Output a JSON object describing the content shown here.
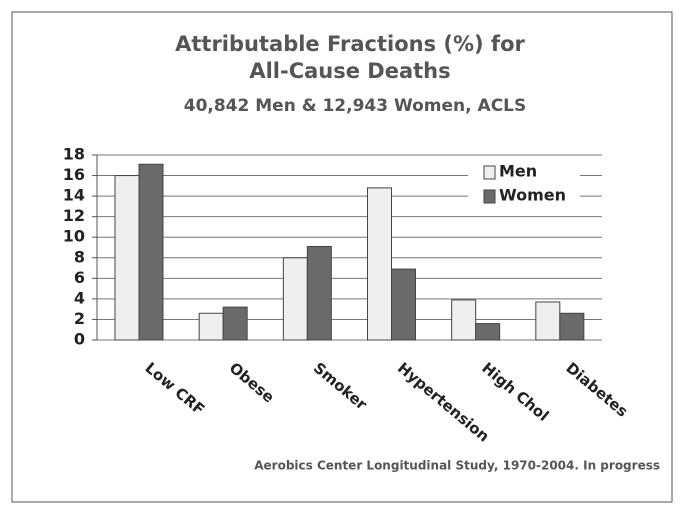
{
  "chart_data": {
    "type": "bar",
    "title": "Attributable Fractions (%) for",
    "title_line2": "All-Cause Deaths",
    "subtitle": "40,842 Men & 12,943 Women, ACLS",
    "footnote": "Aerobics Center Longitudinal Study, 1970-2004. In progress",
    "categories": [
      "Low CRF",
      "Obese",
      "Smoker",
      "Hypertension",
      "High Chol",
      "Diabetes"
    ],
    "series": [
      {
        "name": "Men",
        "color": "#efefef",
        "values": [
          16,
          2.6,
          8,
          14.8,
          3.9,
          3.7
        ]
      },
      {
        "name": "Women",
        "color": "#6a6a6a",
        "values": [
          17.1,
          3.2,
          9.1,
          6.9,
          1.6,
          2.6
        ]
      }
    ],
    "ylim": [
      0,
      18
    ],
    "yticks": [
      0,
      2,
      4,
      6,
      8,
      10,
      12,
      14,
      16,
      18
    ],
    "grid": true,
    "legend": "top-right"
  }
}
